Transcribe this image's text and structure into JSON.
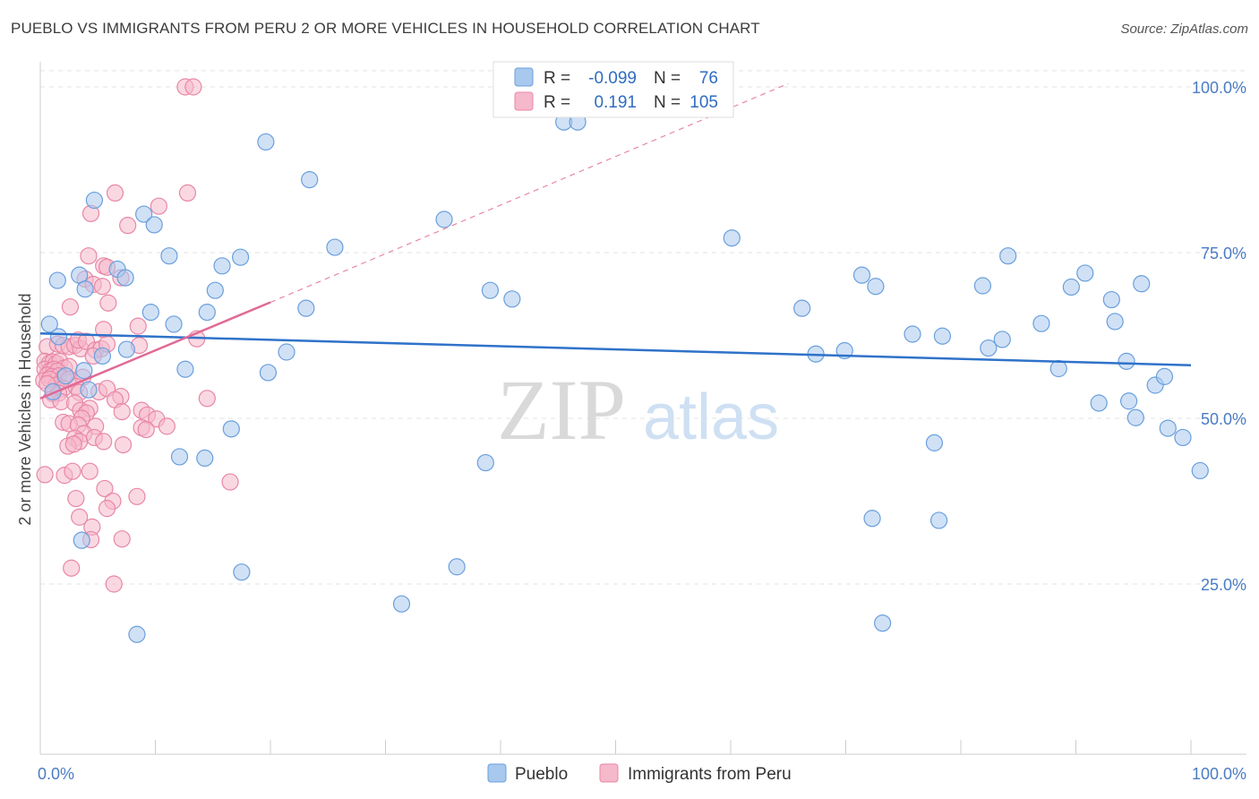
{
  "title": "PUEBLO VS IMMIGRANTS FROM PERU 2 OR MORE VEHICLES IN HOUSEHOLD CORRELATION CHART",
  "source": "Source: ZipAtlas.com",
  "watermark": {
    "zip": "ZIP",
    "atlas": "atlas"
  },
  "colors": {
    "pueblo_fill": "#a9c8ee",
    "pueblo_stroke": "#6a9fdc",
    "pueblo_line": "#2f72c9",
    "peru_fill": "#f6b8cb",
    "peru_stroke": "#e887a6",
    "peru_line": "#e06a96",
    "grid": "#e3e3e3",
    "axis_text": "#4a7cc4"
  },
  "legend": {
    "rows": [
      {
        "r_label": "R =",
        "r_value": "-0.099",
        "n_label": "N =",
        "n_value": "76"
      },
      {
        "r_label": "R =",
        "r_value": "0.191",
        "n_label": "N =",
        "n_value": "105"
      }
    ]
  },
  "chart_data": {
    "type": "scatter",
    "title": "PUEBLO VS IMMIGRANTS FROM PERU 2 OR MORE VEHICLES IN HOUSEHOLD CORRELATION CHART",
    "xlabel": "",
    "ylabel": "2 or more Vehicles in Household",
    "xlim": [
      0,
      100
    ],
    "ylim": [
      0,
      102
    ],
    "x_tick_labels": [
      "0.0%",
      "100.0%"
    ],
    "y_ticks": [
      25,
      50,
      75,
      100
    ],
    "y_tick_labels": [
      "25.0%",
      "50.0%",
      "75.0%",
      "100.0%"
    ],
    "legend_position": "bottom-center",
    "series": [
      {
        "name": "Pueblo",
        "R": -0.099,
        "N": 76,
        "trend": {
          "x": [
            0,
            100
          ],
          "y": [
            62.8,
            58.0
          ]
        },
        "points": [
          [
            0.8,
            64.2
          ],
          [
            3.4,
            71.6
          ],
          [
            4.7,
            82.9
          ],
          [
            6.7,
            72.5
          ],
          [
            7.4,
            71.2
          ],
          [
            3.9,
            69.5
          ],
          [
            1.5,
            70.8
          ],
          [
            9.0,
            80.8
          ],
          [
            9.9,
            79.2
          ],
          [
            11.2,
            74.5
          ],
          [
            9.6,
            66.0
          ],
          [
            11.6,
            64.2
          ],
          [
            14.5,
            66.0
          ],
          [
            15.2,
            69.3
          ],
          [
            15.8,
            73.0
          ],
          [
            17.4,
            74.3
          ],
          [
            19.6,
            91.7
          ],
          [
            23.4,
            86.0
          ],
          [
            25.6,
            75.8
          ],
          [
            35.1,
            80.0
          ],
          [
            39.1,
            69.3
          ],
          [
            41.0,
            68.0
          ],
          [
            45.5,
            94.7
          ],
          [
            46.7,
            94.7
          ],
          [
            23.1,
            66.6
          ],
          [
            21.4,
            60.0
          ],
          [
            5.4,
            59.4
          ],
          [
            12.6,
            57.4
          ],
          [
            19.8,
            56.9
          ],
          [
            1.6,
            62.3
          ],
          [
            3.8,
            57.2
          ],
          [
            4.2,
            54.3
          ],
          [
            1.1,
            54.0
          ],
          [
            2.2,
            56.4
          ],
          [
            12.1,
            44.2
          ],
          [
            14.3,
            44.0
          ],
          [
            16.6,
            48.4
          ],
          [
            7.5,
            60.4
          ],
          [
            3.6,
            31.6
          ],
          [
            8.4,
            17.4
          ],
          [
            17.5,
            26.8
          ],
          [
            31.4,
            22.0
          ],
          [
            36.2,
            27.6
          ],
          [
            38.7,
            43.3
          ],
          [
            60.1,
            77.2
          ],
          [
            66.2,
            66.6
          ],
          [
            71.4,
            71.6
          ],
          [
            72.6,
            69.9
          ],
          [
            69.9,
            60.2
          ],
          [
            67.4,
            59.7
          ],
          [
            75.8,
            62.7
          ],
          [
            78.4,
            62.4
          ],
          [
            77.7,
            46.3
          ],
          [
            72.3,
            34.9
          ],
          [
            78.1,
            34.6
          ],
          [
            73.2,
            19.1
          ],
          [
            81.9,
            70.0
          ],
          [
            82.4,
            60.6
          ],
          [
            84.1,
            74.5
          ],
          [
            87.0,
            64.3
          ],
          [
            83.6,
            61.9
          ],
          [
            89.6,
            69.8
          ],
          [
            90.8,
            71.9
          ],
          [
            93.1,
            67.9
          ],
          [
            93.4,
            64.6
          ],
          [
            95.7,
            70.3
          ],
          [
            88.5,
            57.5
          ],
          [
            92.0,
            52.3
          ],
          [
            94.6,
            52.6
          ],
          [
            94.4,
            58.6
          ],
          [
            96.9,
            55.0
          ],
          [
            95.2,
            50.1
          ],
          [
            97.7,
            56.3
          ],
          [
            98.0,
            48.5
          ],
          [
            99.3,
            47.1
          ],
          [
            100.8,
            42.1
          ]
        ]
      },
      {
        "name": "Immigrants from Peru",
        "R": 0.191,
        "N": 105,
        "trend": {
          "x": [
            0,
            20
          ],
          "y": [
            53.0,
            67.5
          ]
        },
        "trend_extension": {
          "x": [
            20,
            65
          ],
          "y": [
            67.5,
            100.5
          ]
        },
        "points": [
          [
            12.6,
            100.0
          ],
          [
            13.3,
            100.0
          ],
          [
            6.5,
            84.0
          ],
          [
            12.8,
            84.0
          ],
          [
            10.3,
            82.0
          ],
          [
            4.4,
            80.9
          ],
          [
            7.6,
            79.1
          ],
          [
            4.2,
            74.5
          ],
          [
            5.5,
            73.0
          ],
          [
            5.8,
            72.8
          ],
          [
            3.9,
            71.0
          ],
          [
            4.6,
            70.2
          ],
          [
            7.0,
            71.2
          ],
          [
            5.4,
            69.9
          ],
          [
            5.9,
            67.4
          ],
          [
            2.6,
            66.8
          ],
          [
            8.5,
            63.9
          ],
          [
            5.5,
            63.4
          ],
          [
            13.6,
            62.0
          ],
          [
            0.6,
            60.8
          ],
          [
            1.5,
            61.2
          ],
          [
            2.0,
            61.0
          ],
          [
            2.5,
            60.8
          ],
          [
            3.0,
            61.0
          ],
          [
            3.5,
            60.5
          ],
          [
            3.3,
            61.8
          ],
          [
            4.0,
            61.6
          ],
          [
            4.8,
            60.3
          ],
          [
            5.3,
            60.5
          ],
          [
            5.8,
            61.2
          ],
          [
            8.6,
            61.0
          ],
          [
            4.6,
            59.4
          ],
          [
            0.4,
            58.6
          ],
          [
            0.8,
            58.3
          ],
          [
            1.1,
            58.5
          ],
          [
            1.4,
            58.3
          ],
          [
            1.7,
            58.6
          ],
          [
            2.1,
            57.6
          ],
          [
            2.5,
            57.8
          ],
          [
            0.4,
            57.4
          ],
          [
            0.9,
            57.2
          ],
          [
            1.2,
            57.4
          ],
          [
            1.5,
            57.1
          ],
          [
            0.6,
            56.5
          ],
          [
            1.0,
            56.3
          ],
          [
            1.6,
            56.4
          ],
          [
            2.0,
            56.1
          ],
          [
            2.5,
            55.9
          ],
          [
            3.7,
            56.2
          ],
          [
            0.3,
            55.7
          ],
          [
            0.8,
            55.9
          ],
          [
            1.4,
            55.0
          ],
          [
            2.0,
            54.5
          ],
          [
            3.1,
            54.8
          ],
          [
            1.1,
            53.7
          ],
          [
            1.6,
            53.8
          ],
          [
            3.4,
            53.9
          ],
          [
            5.1,
            54.0
          ],
          [
            5.8,
            54.5
          ],
          [
            7.0,
            53.3
          ],
          [
            6.5,
            52.8
          ],
          [
            0.9,
            52.8
          ],
          [
            1.8,
            52.5
          ],
          [
            3.0,
            52.3
          ],
          [
            3.5,
            51.2
          ],
          [
            4.3,
            51.5
          ],
          [
            4.0,
            50.8
          ],
          [
            3.6,
            50.0
          ],
          [
            7.1,
            51.0
          ],
          [
            8.8,
            51.2
          ],
          [
            9.3,
            50.5
          ],
          [
            10.1,
            49.9
          ],
          [
            14.5,
            53.0
          ],
          [
            2.0,
            49.4
          ],
          [
            2.5,
            49.2
          ],
          [
            3.3,
            49.0
          ],
          [
            4.8,
            48.8
          ],
          [
            8.8,
            48.6
          ],
          [
            9.2,
            48.3
          ],
          [
            11.0,
            48.8
          ],
          [
            3.8,
            47.7
          ],
          [
            4.7,
            47.1
          ],
          [
            3.0,
            47.0
          ],
          [
            3.4,
            46.5
          ],
          [
            5.5,
            46.5
          ],
          [
            2.4,
            45.8
          ],
          [
            2.9,
            46.1
          ],
          [
            7.2,
            46.0
          ],
          [
            0.4,
            41.5
          ],
          [
            2.1,
            41.4
          ],
          [
            2.8,
            42.0
          ],
          [
            4.3,
            42.0
          ],
          [
            5.6,
            39.4
          ],
          [
            6.3,
            37.5
          ],
          [
            8.4,
            38.2
          ],
          [
            16.5,
            40.4
          ],
          [
            3.1,
            37.9
          ],
          [
            5.8,
            36.4
          ],
          [
            3.4,
            35.1
          ],
          [
            4.5,
            33.6
          ],
          [
            4.4,
            31.7
          ],
          [
            7.1,
            31.8
          ],
          [
            2.7,
            27.4
          ],
          [
            6.4,
            25.0
          ],
          [
            0.6,
            55.2
          ]
        ]
      }
    ]
  }
}
